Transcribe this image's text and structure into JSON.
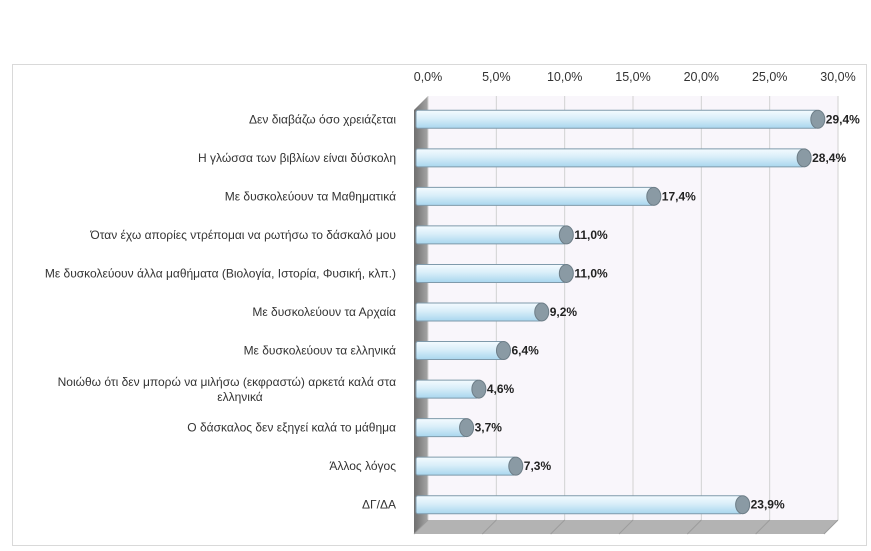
{
  "chart_data": {
    "type": "bar",
    "orientation": "horizontal",
    "title": "",
    "xlabel": "",
    "ylabel": "",
    "xlim": [
      0,
      30
    ],
    "tick_labels": [
      "0,0%",
      "5,0%",
      "10,0%",
      "15,0%",
      "20,0%",
      "25,0%",
      "30,0%"
    ],
    "tick_values": [
      0,
      5,
      10,
      15,
      20,
      25,
      30
    ],
    "categories": [
      "Δεν διαβάζω όσο χρειάζεται",
      "Η γλώσσα των βιβλίων είναι δύσκολη",
      "Με δυσκολεύουν τα Μαθηματικά",
      "Όταν έχω απορίες ντρέπομαι να ρωτήσω το δάσκαλό μου",
      "Με δυσκολεύουν άλλα μαθήματα (Βιολογία, Ιστορία, Φυσική, κλπ.)",
      "Με δυσκολεύουν τα Αρχαία",
      "Με δυσκολεύουν τα ελληνικά",
      "Νοιώθω ότι δεν μπορώ να μιλήσω (εκφραστώ) αρκετά καλά στα ελληνικά",
      "Ο δάσκαλος δεν εξηγεί καλά το μάθημα",
      "Άλλος λόγος",
      "ΔΓ/ΔΑ"
    ],
    "category_lines": [
      [
        "Δεν διαβάζω όσο χρειάζεται"
      ],
      [
        "Η γλώσσα των βιβλίων είναι δύσκολη"
      ],
      [
        "Με δυσκολεύουν τα Μαθηματικά"
      ],
      [
        "Όταν έχω απορίες ντρέπομαι να ρωτήσω το δάσκαλό μου"
      ],
      [
        "Με δυσκολεύουν άλλα μαθήματα (Βιολογία, Ιστορία, Φυσική, κλπ.)"
      ],
      [
        "Με δυσκολεύουν τα Αρχαία"
      ],
      [
        "Με δυσκολεύουν τα ελληνικά"
      ],
      [
        "Νοιώθω ότι δεν μπορώ να μιλήσω (εκφραστώ) αρκετά καλά στα",
        "ελληνικά"
      ],
      [
        "Ο δάσκαλος δεν εξηγεί καλά το μάθημα"
      ],
      [
        "Άλλος λόγος"
      ],
      [
        "ΔΓ/ΔΑ"
      ]
    ],
    "values": [
      29.4,
      28.4,
      17.4,
      11.0,
      11.0,
      9.2,
      6.4,
      4.6,
      3.7,
      7.3,
      23.9
    ],
    "data_labels": [
      "29,4%",
      "28,4%",
      "17,4%",
      "11,0%",
      "11,0%",
      "9,2%",
      "6,4%",
      "4,6%",
      "3,7%",
      "7,3%",
      "23,9%"
    ],
    "grid": true,
    "legend": "none",
    "colors": {
      "bar_fill_light": "#f4fbff",
      "bar_fill_dark": "#a9d6ee",
      "bar_stroke": "#7f9aab",
      "bar_cap": "#8a9aa4",
      "plot_bg": "#f9f6fb",
      "wall": "#8c8c8c",
      "floor": "#b3b3b3",
      "gridline": "#d2d2d2"
    }
  }
}
